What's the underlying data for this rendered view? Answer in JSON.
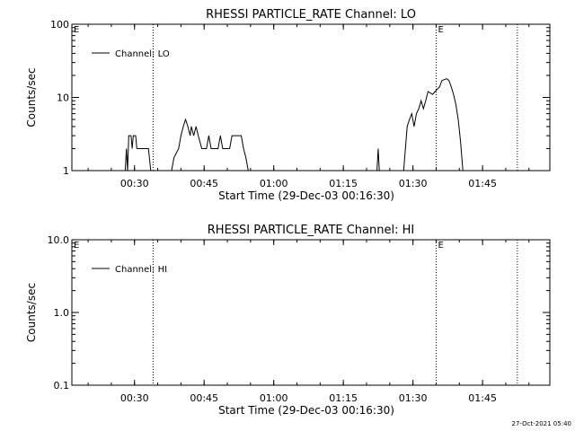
{
  "footer": {
    "timestamp": "27-Oct-2021 05:40"
  },
  "chart_data": [
    {
      "type": "line",
      "title": "RHESSI PARTICLE_RATE Channel: LO",
      "xlabel": "Start Time (29-Dec-03 00:16:30)",
      "ylabel": "Counts/sec",
      "yscale": "log",
      "ylim": [
        1,
        100
      ],
      "xlim_minutes_after_midnight": [
        16.5,
        119.5
      ],
      "xticks": [
        "00:30",
        "00:45",
        "01:00",
        "01:15",
        "01:30",
        "01:45"
      ],
      "yticks": [
        "1",
        "10",
        "100"
      ],
      "legend": {
        "label": "Channel: LO",
        "placement": "top-left"
      },
      "markers": [
        {
          "label": "E",
          "time": "00:16:30",
          "style": "none"
        },
        {
          "label": "",
          "time": "00:34:00",
          "style": "dotted"
        },
        {
          "label": "E",
          "time": "01:35:00",
          "style": "dotted"
        },
        {
          "label": "",
          "time": "01:52:30",
          "style": "dotted"
        }
      ],
      "series": [
        {
          "name": "Channel: LO",
          "points": [
            [
              "00:28:00",
              1
            ],
            [
              "00:28:15",
              2
            ],
            [
              "00:28:30",
              1
            ],
            [
              "00:28:45",
              3
            ],
            [
              "00:29:15",
              3
            ],
            [
              "00:29:30",
              2
            ],
            [
              "00:29:45",
              3
            ],
            [
              "00:30:15",
              3
            ],
            [
              "00:30:30",
              2
            ],
            [
              "00:33:00",
              2
            ],
            [
              "00:33:30",
              1
            ],
            [
              "00:38:00",
              1
            ],
            [
              "00:38:30",
              1.5
            ],
            [
              "00:39:30",
              2
            ],
            [
              "00:40:00",
              3
            ],
            [
              "00:40:30",
              4
            ],
            [
              "00:41:00",
              5
            ],
            [
              "00:41:30",
              4
            ],
            [
              "00:42:00",
              3
            ],
            [
              "00:42:15",
              4
            ],
            [
              "00:42:45",
              3
            ],
            [
              "00:43:15",
              4
            ],
            [
              "00:43:45",
              3
            ],
            [
              "00:44:30",
              2
            ],
            [
              "00:45:30",
              2
            ],
            [
              "00:46:00",
              3
            ],
            [
              "00:46:30",
              2
            ],
            [
              "00:48:00",
              2
            ],
            [
              "00:48:30",
              3
            ],
            [
              "00:49:00",
              2
            ],
            [
              "00:50:30",
              2
            ],
            [
              "00:51:00",
              3
            ],
            [
              "00:53:00",
              3
            ],
            [
              "00:53:30",
              2
            ],
            [
              "00:54:00",
              1.5
            ],
            [
              "00:54:30",
              1
            ],
            [
              "01:22:15",
              1
            ],
            [
              "01:22:30",
              2
            ],
            [
              "01:22:45",
              1
            ],
            [
              "01:28:00",
              1
            ],
            [
              "01:28:45",
              4
            ],
            [
              "01:29:15",
              5
            ],
            [
              "01:29:45",
              6
            ],
            [
              "01:30:15",
              4
            ],
            [
              "01:30:45",
              6
            ],
            [
              "01:31:15",
              7
            ],
            [
              "01:31:45",
              9
            ],
            [
              "01:32:15",
              7
            ],
            [
              "01:32:45",
              9
            ],
            [
              "01:33:15",
              12
            ],
            [
              "01:34:15",
              11
            ],
            [
              "01:34:45",
              12
            ],
            [
              "01:35:45",
              14
            ],
            [
              "01:36:15",
              17
            ],
            [
              "01:37:15",
              18
            ],
            [
              "01:37:45",
              17
            ],
            [
              "01:38:15",
              14
            ],
            [
              "01:38:45",
              11
            ],
            [
              "01:39:15",
              8
            ],
            [
              "01:39:45",
              5
            ],
            [
              "01:40:15",
              2.5
            ],
            [
              "01:40:45",
              1
            ]
          ]
        }
      ]
    },
    {
      "type": "line",
      "title": "RHESSI PARTICLE_RATE Channel: HI",
      "xlabel": "Start Time (29-Dec-03 00:16:30)",
      "ylabel": "Counts/sec",
      "yscale": "log",
      "ylim": [
        0.1,
        10
      ],
      "xlim_minutes_after_midnight": [
        16.5,
        119.5
      ],
      "xticks": [
        "00:30",
        "00:45",
        "01:00",
        "01:15",
        "01:30",
        "01:45"
      ],
      "yticks": [
        "0.1",
        "1.0",
        "10.0"
      ],
      "legend": {
        "label": "Channel: HI",
        "placement": "top-left"
      },
      "markers": [
        {
          "label": "E",
          "time": "00:16:30",
          "style": "none"
        },
        {
          "label": "",
          "time": "00:34:00",
          "style": "dotted"
        },
        {
          "label": "E",
          "time": "01:35:00",
          "style": "dotted"
        },
        {
          "label": "",
          "time": "01:52:30",
          "style": "dotted"
        }
      ],
      "series": [
        {
          "name": "Channel: HI",
          "points": []
        }
      ]
    }
  ]
}
